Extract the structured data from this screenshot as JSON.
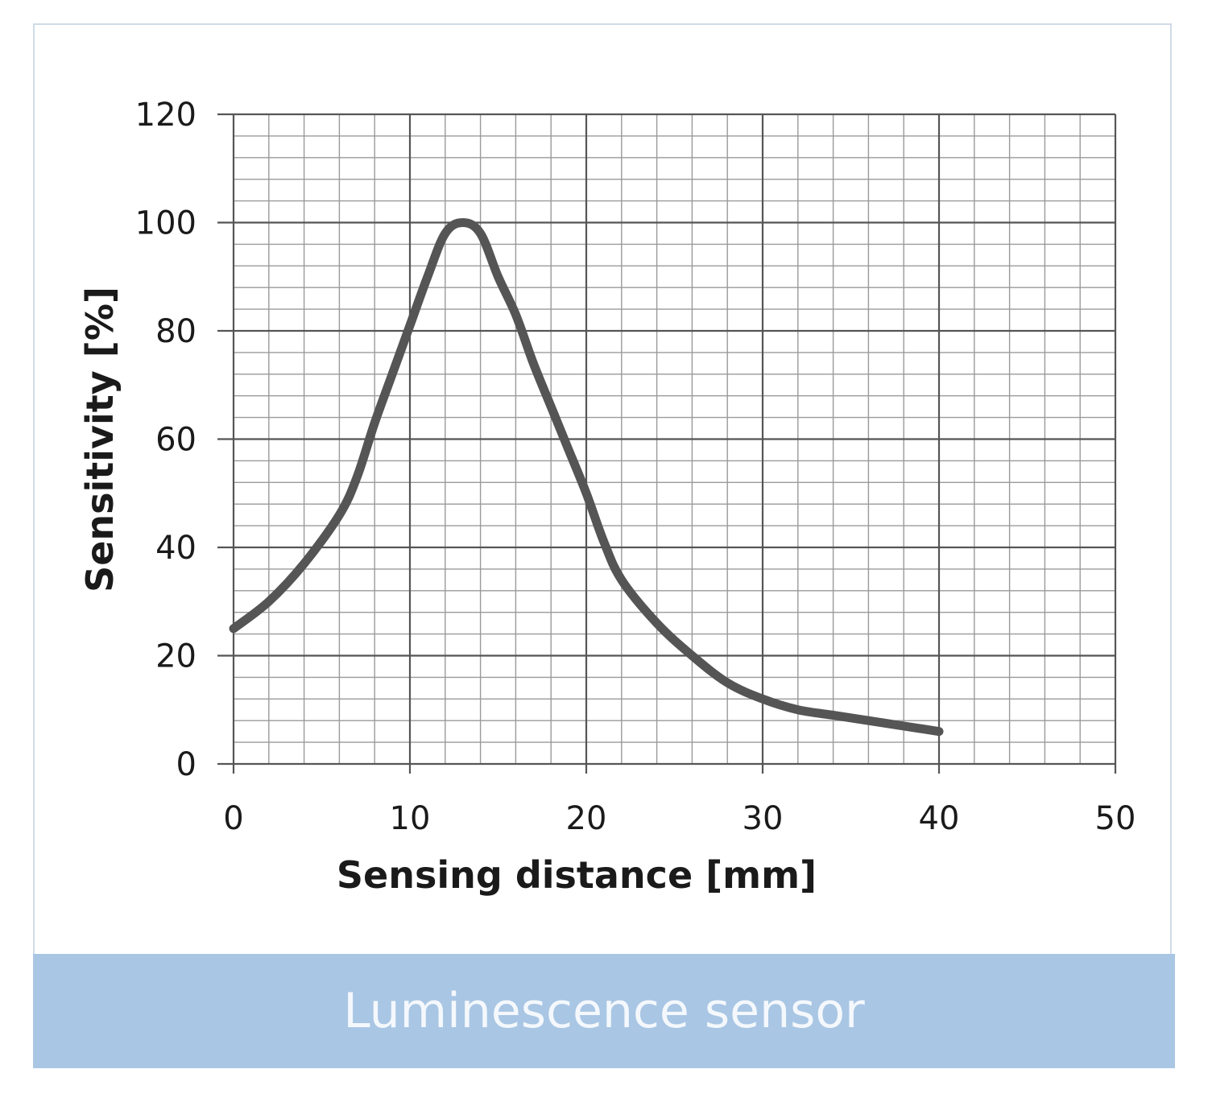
{
  "caption": "Luminescence sensor",
  "chart_data": {
    "type": "line",
    "title": "",
    "xlabel": "Sensing distance [mm]",
    "ylabel": "Sensitivity [%]",
    "xlim": [
      0,
      50
    ],
    "ylim": [
      0,
      120
    ],
    "x_ticks": [
      "0",
      "10",
      "20",
      "30",
      "40",
      "50"
    ],
    "y_ticks": [
      "0",
      "20",
      "40",
      "60",
      "80",
      "100",
      "120"
    ],
    "grid": true,
    "minor_grid": true,
    "line_color": "#555555",
    "series": [
      {
        "x": [
          0,
          2,
          4,
          6,
          7,
          8,
          9,
          10,
          11,
          12,
          13,
          14,
          15,
          16,
          17,
          18,
          19,
          20,
          21,
          22,
          24,
          26,
          28,
          30,
          32,
          34,
          36,
          38,
          40
        ],
        "y": [
          25,
          30,
          37,
          46,
          53,
          63,
          72,
          81,
          90,
          98,
          100,
          98,
          90,
          83,
          74,
          66,
          58,
          50,
          41,
          34,
          26,
          20,
          15,
          12,
          10,
          9,
          8,
          7,
          6
        ]
      }
    ]
  }
}
